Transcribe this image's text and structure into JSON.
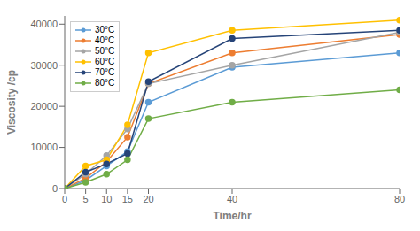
{
  "chart_data": {
    "type": "line",
    "x": [
      0,
      5,
      10,
      15,
      20,
      40,
      80
    ],
    "series": [
      {
        "name": "30°C",
        "color": "#5B9BD5",
        "values": [
          0,
          2000,
          5500,
          9000,
          21000,
          29500,
          33000
        ]
      },
      {
        "name": "40°C",
        "color": "#ED7D31",
        "values": [
          0,
          2500,
          6500,
          12500,
          25500,
          33000,
          37500
        ]
      },
      {
        "name": "50°C",
        "color": "#A5A5A5",
        "values": [
          0,
          3500,
          8000,
          14500,
          25500,
          30000,
          38000
        ]
      },
      {
        "name": "60°C",
        "color": "#FFC000",
        "values": [
          0,
          5500,
          7000,
          15500,
          33000,
          38500,
          41000
        ]
      },
      {
        "name": "70°C",
        "color": "#264478",
        "values": [
          0,
          4000,
          6000,
          8500,
          26000,
          36500,
          38500
        ]
      },
      {
        "name": "80°C",
        "color": "#70AD47",
        "values": [
          0,
          1500,
          3500,
          7000,
          17000,
          21000,
          24000
        ]
      }
    ],
    "xlabel": "Time/hr",
    "ylabel": "Viscosity /cp",
    "xlim": [
      0,
      80
    ],
    "ylim": [
      0,
      42000
    ],
    "xticks": [
      0,
      5,
      10,
      15,
      20,
      40,
      80
    ],
    "yticks": [
      0,
      10000,
      20000,
      30000,
      40000
    ],
    "legend": "upper left",
    "marker": "o",
    "grid": false
  }
}
